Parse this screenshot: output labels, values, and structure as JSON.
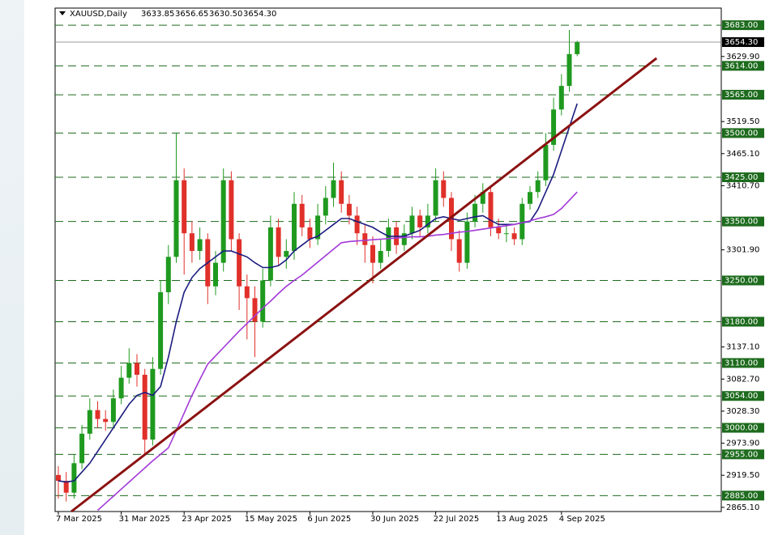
{
  "chart_data": {
    "type": "candlestick",
    "symbol": "XAUUSD,Daily",
    "quote": [
      "3633.85",
      "3656.65",
      "3630.50",
      "3654.30"
    ],
    "categories": [
      "7 Mar 2025",
      null,
      null,
      null,
      null,
      null,
      null,
      null,
      "31 Mar 2025",
      null,
      null,
      null,
      null,
      null,
      null,
      null,
      "23 Apr 2025",
      null,
      null,
      null,
      null,
      null,
      null,
      null,
      "15 May 2025",
      null,
      null,
      null,
      null,
      null,
      null,
      null,
      "6 Jun 2025",
      null,
      null,
      null,
      null,
      null,
      null,
      null,
      "30 Jun 2025",
      null,
      null,
      null,
      null,
      null,
      null,
      null,
      "22 Jul 2025",
      null,
      null,
      null,
      null,
      null,
      null,
      null,
      "13 Aug 2025",
      null,
      null,
      null,
      null,
      null,
      null,
      null,
      "4 Sep 2025",
      null,
      null
    ],
    "open": [
      2920,
      2910,
      2890,
      2940,
      2990,
      3030,
      3015,
      3010,
      3050,
      3085,
      3110,
      3090,
      2980,
      3100,
      3230,
      3290,
      3420,
      3330,
      3300,
      3320,
      3240,
      3280,
      3420,
      3320,
      3240,
      3220,
      3180,
      3250,
      3340,
      3290,
      3300,
      3380,
      3340,
      3320,
      3360,
      3390,
      3420,
      3380,
      3360,
      3330,
      3310,
      3280,
      3300,
      3340,
      3310,
      3330,
      3360,
      3340,
      3360,
      3420,
      3390,
      3320,
      3280,
      3350,
      3380,
      3400,
      3340,
      3330,
      3330,
      3320,
      3380,
      3400,
      3420,
      3480,
      3540,
      3580,
      3633.85
    ],
    "high": [
      2935,
      2925,
      2955,
      3005,
      3050,
      3045,
      3030,
      3065,
      3105,
      3135,
      3125,
      3100,
      3120,
      3250,
      3310,
      3500,
      3440,
      3350,
      3340,
      3330,
      3300,
      3440,
      3435,
      3330,
      3260,
      3240,
      3270,
      3360,
      3355,
      3320,
      3400,
      3395,
      3355,
      3380,
      3410,
      3450,
      3435,
      3395,
      3375,
      3345,
      3325,
      3320,
      3355,
      3350,
      3345,
      3375,
      3370,
      3380,
      3440,
      3435,
      3400,
      3335,
      3365,
      3395,
      3415,
      3410,
      3355,
      3345,
      3340,
      3390,
      3410,
      3435,
      3500,
      3560,
      3600,
      3675,
      3656.65
    ],
    "low": [
      2880,
      2875,
      2880,
      2930,
      2980,
      3000,
      2995,
      3000,
      3040,
      3075,
      3070,
      2955,
      2970,
      3090,
      3210,
      3280,
      3260,
      3280,
      3285,
      3210,
      3225,
      3265,
      3300,
      3200,
      3150,
      3120,
      3170,
      3240,
      3275,
      3270,
      3285,
      3325,
      3305,
      3310,
      3345,
      3375,
      3365,
      3345,
      3310,
      3280,
      3245,
      3270,
      3290,
      3295,
      3300,
      3320,
      3325,
      3330,
      3350,
      3375,
      3300,
      3265,
      3270,
      3340,
      3365,
      3325,
      3320,
      3315,
      3310,
      3310,
      3370,
      3390,
      3410,
      3470,
      3530,
      3570,
      3630.5
    ],
    "close": [
      2910,
      2890,
      2940,
      2990,
      3030,
      3015,
      3010,
      3050,
      3085,
      3110,
      3090,
      2980,
      3100,
      3230,
      3290,
      3420,
      3330,
      3300,
      3320,
      3240,
      3280,
      3420,
      3320,
      3240,
      3220,
      3180,
      3250,
      3340,
      3290,
      3300,
      3380,
      3340,
      3320,
      3360,
      3390,
      3420,
      3380,
      3360,
      3330,
      3310,
      3280,
      3300,
      3340,
      3310,
      3330,
      3360,
      3340,
      3360,
      3420,
      3390,
      3320,
      3280,
      3350,
      3380,
      3400,
      3340,
      3330,
      3330,
      3320,
      3380,
      3400,
      3420,
      3480,
      3540,
      3580,
      3634,
      3654.3
    ],
    "up_color": "#1f9a1f",
    "down_color": "#e0302a",
    "moving_averages": [
      {
        "color": "#1c1c80",
        "values": [
          2910,
          2908,
          2910,
          2925,
          2940,
          2960,
          2980,
          3000,
          3020,
          3040,
          3055,
          3060,
          3055,
          3070,
          3120,
          3180,
          3230,
          3255,
          3270,
          3280,
          3290,
          3300,
          3300,
          3295,
          3290,
          3280,
          3272,
          3272,
          3275,
          3285,
          3300,
          3310,
          3320,
          3325,
          3335,
          3345,
          3355,
          3355,
          3350,
          3345,
          3340,
          3332,
          3325,
          3325,
          3325,
          3330,
          3335,
          3345,
          3355,
          3358,
          3355,
          3352,
          3355,
          3358,
          3360,
          3352,
          3345,
          3345,
          3345,
          3348,
          3350,
          3370,
          3400,
          3430,
          3470,
          3510,
          3550
        ]
      },
      {
        "color": "#a23ad8",
        "values": [
          null,
          null,
          null,
          null,
          null,
          2860,
          2872,
          2884,
          2896,
          2908,
          2920,
          2932,
          2944,
          2955,
          2966,
          2995,
          3025,
          3055,
          3082,
          3108,
          3122,
          3136,
          3150,
          3164,
          3177,
          3190,
          3203,
          3215,
          3228,
          3240,
          3250,
          3259,
          3270,
          3281,
          3292,
          3303,
          3314,
          3316,
          3317,
          3318,
          3319,
          3320,
          3321,
          3322,
          3323,
          3324,
          3324,
          3325,
          3327,
          3328,
          3330,
          3332,
          3333,
          3335,
          3337,
          3339,
          3341,
          3343,
          3345,
          3348,
          3351,
          3355,
          3358,
          3362,
          3372,
          3386,
          3400
        ]
      }
    ],
    "trendline": {
      "x": [
        1.65,
        76.1
      ],
      "values": [
        2858,
        3627
      ],
      "color": "#8b1111"
    },
    "levels": [
      {
        "value": 3683,
        "label": "3683.00"
      },
      {
        "value": 3614,
        "label": "3614.00"
      },
      {
        "value": 3565,
        "label": "3565.00"
      },
      {
        "value": 3500,
        "label": "3500.00"
      },
      {
        "value": 3425,
        "label": "3425.00"
      },
      {
        "value": 3350,
        "label": "3350.00"
      },
      {
        "value": 3250,
        "label": "3250.00"
      },
      {
        "value": 3180,
        "label": "3180.00"
      },
      {
        "value": 3110,
        "label": "3110.00"
      },
      {
        "value": 3054,
        "label": "3054.00"
      },
      {
        "value": 3000,
        "label": "3000.00"
      },
      {
        "value": 2955,
        "label": "2955.00"
      },
      {
        "value": 2885,
        "label": "2885.00"
      }
    ],
    "level_color": "#1d6b1d",
    "current_price": {
      "value": 3654.3,
      "label": "3654.30"
    },
    "ylim": [
      2858,
      3712
    ],
    "yticks": [
      {
        "value": 3629.9,
        "label": "3629.90"
      },
      {
        "value": 3519.5,
        "label": "3519.50"
      },
      {
        "value": 3465.1,
        "label": "3465.10"
      },
      {
        "value": 3410.7,
        "label": "3410.70"
      },
      {
        "value": 3301.9,
        "label": "3301.90"
      },
      {
        "value": 3137.1,
        "label": "3137.10"
      },
      {
        "value": 3082.7,
        "label": "3082.70"
      },
      {
        "value": 3028.3,
        "label": "3028.30"
      },
      {
        "value": 2973.9,
        "label": "2973.90"
      },
      {
        "value": 2919.5,
        "label": "2919.50"
      },
      {
        "value": 2865.1,
        "label": "2865.10"
      }
    ]
  }
}
